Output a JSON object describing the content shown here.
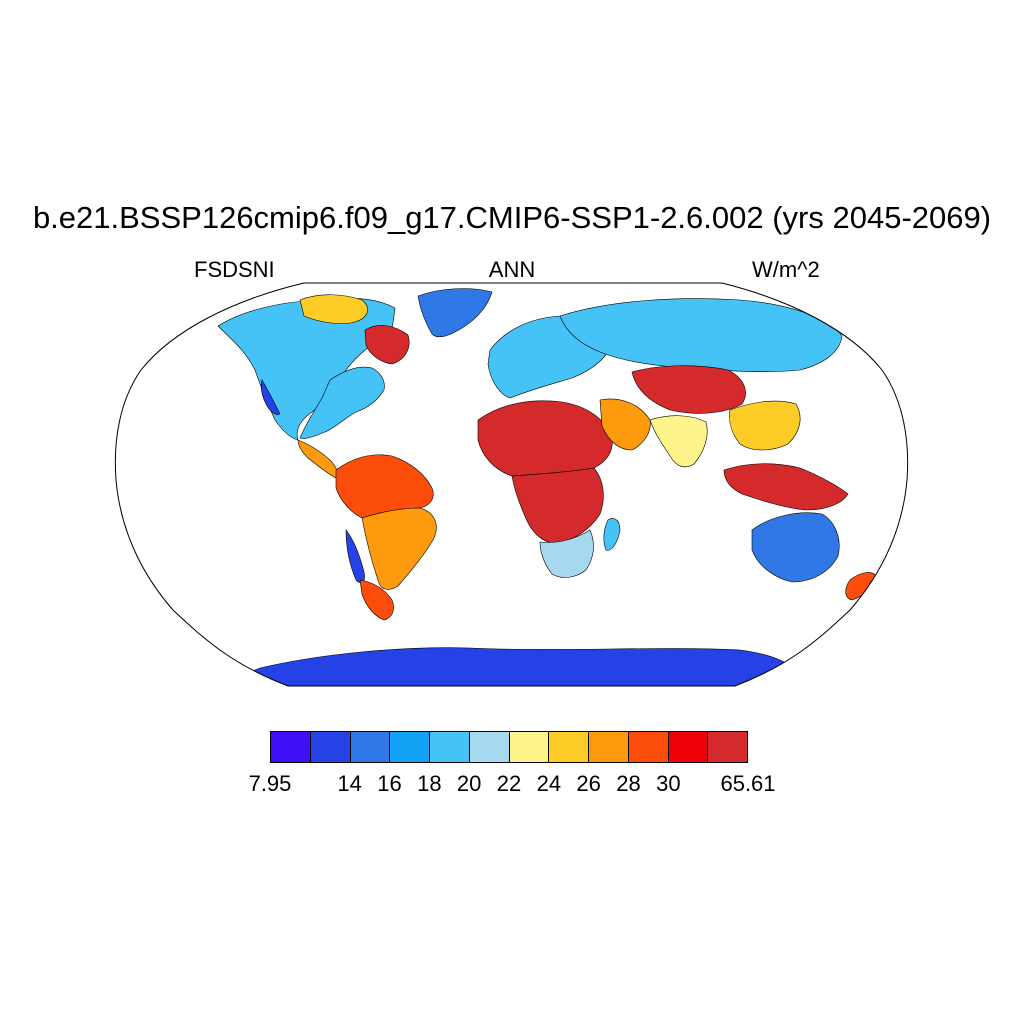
{
  "figure": {
    "title": "b.e21.BSSP126cmip6.f09_g17.CMIP6-SSP1-2.6.002 (yrs 2045-2069)",
    "variable": "FSDSNI",
    "season": "ANN",
    "units": "W/m^2"
  },
  "colorbar": {
    "colors": [
      "#3f0ff6",
      "#2542e6",
      "#2f78e6",
      "#14a2f6",
      "#45c2f6",
      "#a6d8ef",
      "#fdf58c",
      "#fdcc27",
      "#fd9a0d",
      "#fd4d0b",
      "#ee0007",
      "#d42a2c"
    ],
    "labels": [
      {
        "text": "7.95",
        "boundary": 0
      },
      {
        "text": "14",
        "boundary": 2
      },
      {
        "text": "16",
        "boundary": 3
      },
      {
        "text": "18",
        "boundary": 4
      },
      {
        "text": "20",
        "boundary": 5
      },
      {
        "text": "22",
        "boundary": 6
      },
      {
        "text": "24",
        "boundary": 7
      },
      {
        "text": "26",
        "boundary": 8
      },
      {
        "text": "28",
        "boundary": 9
      },
      {
        "text": "30",
        "boundary": 10
      },
      {
        "text": "65.61",
        "boundary": 12
      }
    ]
  },
  "map": {
    "projection": "Robinson",
    "coastlines": true,
    "regions": [
      {
        "name": "north-america-west",
        "color": "#45c2f6"
      },
      {
        "name": "north-america-east",
        "color": "#45c2f6"
      },
      {
        "name": "canada-north",
        "color": "#fdcc27"
      },
      {
        "name": "hudson-region",
        "color": "#d42a2c"
      },
      {
        "name": "california",
        "color": "#2542e6"
      },
      {
        "name": "greenland",
        "color": "#2f78e6"
      },
      {
        "name": "central-america",
        "color": "#fd9a0d"
      },
      {
        "name": "amazon",
        "color": "#fd4d0b"
      },
      {
        "name": "south-america-east",
        "color": "#fd9a0d"
      },
      {
        "name": "andes",
        "color": "#2542e6"
      },
      {
        "name": "patagonia",
        "color": "#fd4d0b"
      },
      {
        "name": "europe",
        "color": "#45c2f6"
      },
      {
        "name": "north-africa",
        "color": "#d42a2c"
      },
      {
        "name": "central-africa",
        "color": "#d42a2c"
      },
      {
        "name": "southern-africa",
        "color": "#a6d8ef"
      },
      {
        "name": "madagascar",
        "color": "#45c2f6"
      },
      {
        "name": "arabia",
        "color": "#fd9a0d"
      },
      {
        "name": "siberia",
        "color": "#45c2f6"
      },
      {
        "name": "tibet",
        "color": "#d42a2c"
      },
      {
        "name": "india",
        "color": "#fdf58c"
      },
      {
        "name": "southeast-asia",
        "color": "#fdcc27"
      },
      {
        "name": "indonesia",
        "color": "#d42a2c"
      },
      {
        "name": "australia",
        "color": "#2f78e6"
      },
      {
        "name": "new-zealand",
        "color": "#fd4d0b"
      },
      {
        "name": "antarctica",
        "color": "#2542e6"
      }
    ]
  }
}
